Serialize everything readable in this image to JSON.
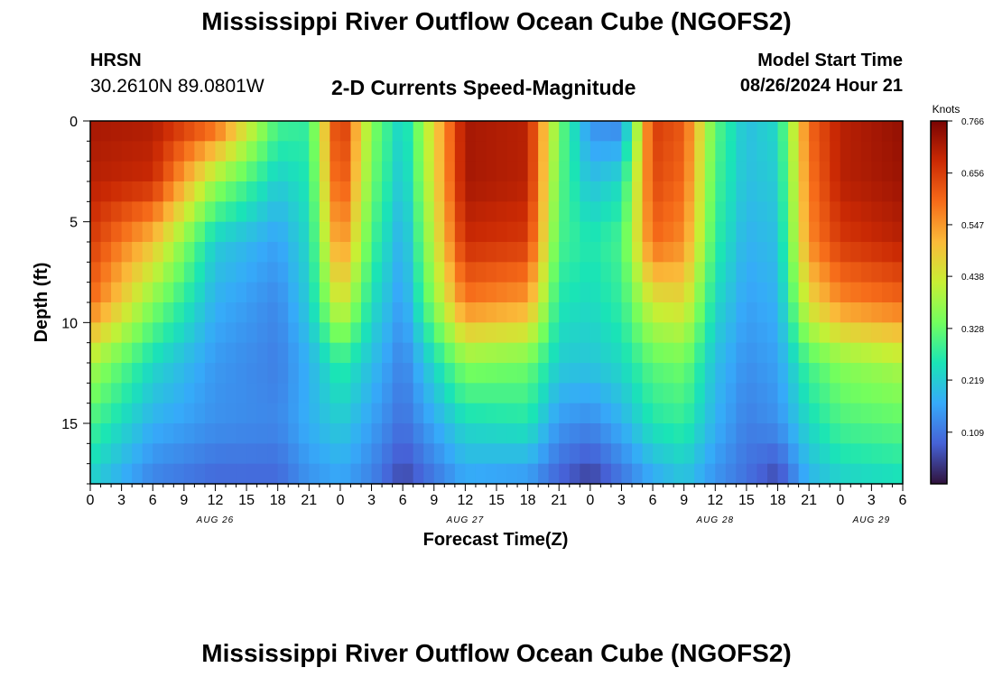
{
  "header": {
    "title": "Mississippi River Outflow Ocean Cube (NGOFS2)",
    "station_id": "HRSN",
    "coordinates": "30.2610N  89.0801W",
    "subtitle": "2-D Currents Speed-Magnitude",
    "start_label": "Model Start Time",
    "start_value": "08/26/2024 Hour 21"
  },
  "footer": {
    "title": "Mississippi River Outflow Ocean Cube (NGOFS2)"
  },
  "chart_data": {
    "type": "heatmap",
    "title": "2-D Currents Speed-Magnitude",
    "xlabel": "Forecast Time(Z)",
    "ylabel": "Depth (ft)",
    "colorbar_label": "Knots",
    "colorbar_ticks": [
      "0.766",
      "0.656",
      "0.547",
      "0.438",
      "0.328",
      "0.219",
      "0.109"
    ],
    "colorbar_range": [
      0.0,
      0.766
    ],
    "colormap": [
      "#30123b",
      "#4662d7",
      "#36aaf9",
      "#1ae4b6",
      "#72fe5e",
      "#c8ef34",
      "#faba39",
      "#f66b19",
      "#cb2a04",
      "#7a0403"
    ],
    "x_tick_labels": [
      "0",
      "3",
      "6",
      "9",
      "12",
      "15",
      "18",
      "21",
      "0",
      "3",
      "6",
      "9",
      "12",
      "15",
      "18",
      "21",
      "0",
      "3",
      "6",
      "9",
      "12",
      "15",
      "18",
      "21",
      "0",
      "3",
      "6"
    ],
    "date_labels": [
      {
        "label": "AUG 26",
        "hours": 12
      },
      {
        "label": "AUG 27",
        "hours": 36
      },
      {
        "label": "AUG 28",
        "hours": 60
      },
      {
        "label": "AUG 29",
        "hours": 75
      }
    ],
    "xlim": [
      0,
      78
    ],
    "ylim": [
      18,
      0
    ],
    "y_ticks": [
      0,
      5,
      10,
      15
    ],
    "y_tick_labels": [
      "0",
      "5",
      "10",
      "15"
    ],
    "x_hours": [
      0,
      6,
      12,
      18,
      21,
      24,
      27,
      30,
      36,
      42,
      45,
      48,
      51,
      54,
      57,
      60,
      63,
      66,
      69,
      72,
      78
    ],
    "depths_ft": [
      0,
      3,
      6,
      9,
      12,
      15,
      18
    ],
    "speed_knots": [
      [
        0.72,
        0.71,
        0.62,
        0.3,
        0.28,
        0.7,
        0.36,
        0.22,
        0.72,
        0.7,
        0.34,
        0.14,
        0.12,
        0.66,
        0.62,
        0.32,
        0.2,
        0.24,
        0.6,
        0.7,
        0.74
      ],
      [
        0.7,
        0.68,
        0.38,
        0.22,
        0.26,
        0.66,
        0.34,
        0.2,
        0.72,
        0.7,
        0.32,
        0.2,
        0.24,
        0.64,
        0.6,
        0.3,
        0.2,
        0.22,
        0.58,
        0.7,
        0.73
      ],
      [
        0.66,
        0.5,
        0.22,
        0.16,
        0.24,
        0.58,
        0.3,
        0.17,
        0.68,
        0.66,
        0.3,
        0.26,
        0.3,
        0.6,
        0.56,
        0.28,
        0.18,
        0.2,
        0.56,
        0.66,
        0.7
      ],
      [
        0.6,
        0.36,
        0.18,
        0.13,
        0.22,
        0.46,
        0.25,
        0.15,
        0.58,
        0.54,
        0.26,
        0.24,
        0.28,
        0.44,
        0.46,
        0.24,
        0.16,
        0.18,
        0.46,
        0.56,
        0.6
      ],
      [
        0.4,
        0.24,
        0.15,
        0.12,
        0.18,
        0.28,
        0.2,
        0.12,
        0.36,
        0.34,
        0.22,
        0.21,
        0.24,
        0.32,
        0.34,
        0.2,
        0.14,
        0.16,
        0.3,
        0.36,
        0.4
      ],
      [
        0.3,
        0.18,
        0.14,
        0.13,
        0.18,
        0.22,
        0.16,
        0.1,
        0.24,
        0.26,
        0.15,
        0.13,
        0.18,
        0.26,
        0.28,
        0.18,
        0.12,
        0.14,
        0.24,
        0.3,
        0.32
      ],
      [
        0.22,
        0.12,
        0.09,
        0.09,
        0.14,
        0.16,
        0.12,
        0.05,
        0.16,
        0.14,
        0.08,
        0.04,
        0.1,
        0.16,
        0.2,
        0.14,
        0.1,
        0.05,
        0.18,
        0.22,
        0.24
      ]
    ]
  }
}
